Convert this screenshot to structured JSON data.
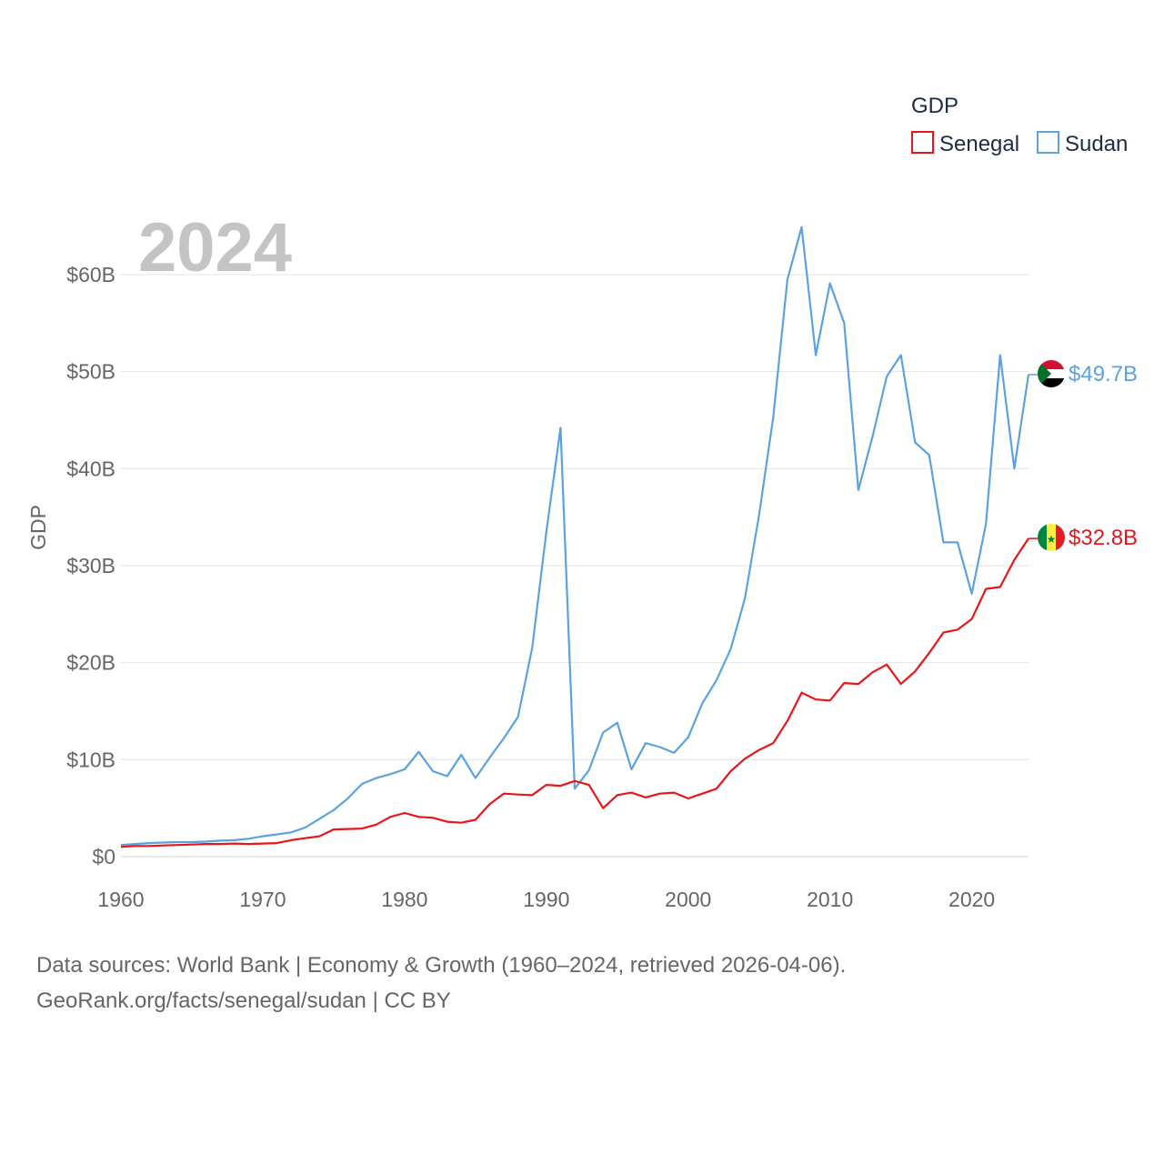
{
  "chart_data": {
    "type": "line",
    "title": "GDP",
    "ylabel": "GDP",
    "xlabel": "",
    "year_label": "2024",
    "x_ticks": [
      1960,
      1970,
      1980,
      1990,
      2000,
      2010,
      2020
    ],
    "x_tick_labels": [
      "1960",
      "1970",
      "1980",
      "1990",
      "2000",
      "2010",
      "2020"
    ],
    "xlim": [
      1960,
      2024
    ],
    "ylim": [
      0,
      60
    ],
    "y_ticks": [
      0,
      10,
      20,
      30,
      40,
      50,
      60
    ],
    "y_tick_labels": [
      "$0",
      "$10B",
      "$20B",
      "$30B",
      "$40B",
      "$50B",
      "$60B"
    ],
    "grid": true,
    "legend_position": "top-right",
    "x": [
      1960,
      1961,
      1962,
      1963,
      1964,
      1965,
      1966,
      1967,
      1968,
      1969,
      1970,
      1971,
      1972,
      1973,
      1974,
      1975,
      1976,
      1977,
      1978,
      1979,
      1980,
      1981,
      1982,
      1983,
      1984,
      1985,
      1986,
      1987,
      1988,
      1989,
      1990,
      1991,
      1992,
      1993,
      1994,
      1995,
      1996,
      1997,
      1998,
      1999,
      2000,
      2001,
      2002,
      2003,
      2004,
      2005,
      2006,
      2007,
      2008,
      2009,
      2010,
      2011,
      2012,
      2013,
      2014,
      2015,
      2016,
      2017,
      2018,
      2019,
      2020,
      2021,
      2022,
      2023,
      2024
    ],
    "series": [
      {
        "name": "Senegal",
        "color": "#e8161b",
        "end_label": "$32.8B",
        "values": [
          1.0,
          1.1,
          1.1,
          1.15,
          1.2,
          1.25,
          1.3,
          1.3,
          1.35,
          1.3,
          1.35,
          1.4,
          1.7,
          1.9,
          2.1,
          2.8,
          2.85,
          2.9,
          3.3,
          4.1,
          4.5,
          4.1,
          4.0,
          3.6,
          3.5,
          3.8,
          5.4,
          6.5,
          6.4,
          6.35,
          7.4,
          7.3,
          7.8,
          7.4,
          5.0,
          6.35,
          6.6,
          6.1,
          6.5,
          6.6,
          6.0,
          6.5,
          7.0,
          8.8,
          10.1,
          11.0,
          11.7,
          14.0,
          16.9,
          16.2,
          16.1,
          17.9,
          17.8,
          19.0,
          19.8,
          17.8,
          19.1,
          21.0,
          23.1,
          23.4,
          24.5,
          27.6,
          27.8,
          30.6,
          32.8
        ]
      },
      {
        "name": "Sudan",
        "color": "#5aa3e0",
        "end_label": "$49.7B",
        "values": [
          1.2,
          1.3,
          1.4,
          1.45,
          1.5,
          1.5,
          1.55,
          1.65,
          1.7,
          1.85,
          2.1,
          2.3,
          2.5,
          3.0,
          3.9,
          4.8,
          6.0,
          7.5,
          8.1,
          8.5,
          9.0,
          10.8,
          8.8,
          8.3,
          10.5,
          8.1,
          10.2,
          12.2,
          14.4,
          21.5,
          33.5,
          44.2,
          7.0,
          8.9,
          12.8,
          13.8,
          9.0,
          11.7,
          11.3,
          10.7,
          12.3,
          15.8,
          18.2,
          21.4,
          26.6,
          35.2,
          45.3,
          59.5,
          64.9,
          51.7,
          59.1,
          55.0,
          37.8,
          43.3,
          49.5,
          51.7,
          42.7,
          41.4,
          32.4,
          32.4,
          27.1,
          34.3,
          51.7,
          40.0,
          49.7
        ]
      }
    ]
  },
  "legend": {
    "title": "GDP",
    "items": [
      {
        "label": "Senegal",
        "color": "#e8161b"
      },
      {
        "label": "Sudan",
        "color": "#5aa3e0"
      }
    ]
  },
  "source": {
    "line1": "Data sources: World Bank | Economy & Growth (1960–2024, retrieved 2026-04-06).",
    "line2": "GeoRank.org/facts/senegal/sudan | CC BY"
  }
}
